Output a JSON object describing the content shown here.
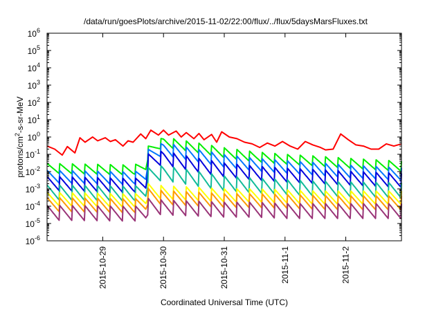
{
  "chart_data": {
    "type": "line",
    "title": "/data/run/goesPlots/archive/2015-11-02/22:00/flux/../flux/5daysMarsFluxes.txt",
    "xlabel": "Coordinated Universal Time (UTC)",
    "ylabel": "protons/cm²-s-sr-MeV",
    "ylabel_parts": {
      "base": "protons/cm",
      "sup": "2",
      "rest": "-s-sr-MeV"
    },
    "yscale": "log",
    "ylim": [
      1e-06,
      1000000.0
    ],
    "xlim": [
      "2015-10-28 02:00",
      "2015-11-02 22:00"
    ],
    "grid": false,
    "legend": "none",
    "x_ticks": [
      "2015-10-29",
      "2015-10-30",
      "2015-10-31",
      "2015-11-1",
      "2015-11-2"
    ],
    "y_ticks": [
      {
        "base": "10",
        "exp": "6"
      },
      {
        "base": "10",
        "exp": "5"
      },
      {
        "base": "10",
        "exp": "4"
      },
      {
        "base": "10",
        "exp": "3"
      },
      {
        "base": "10",
        "exp": "2"
      },
      {
        "base": "10",
        "exp": "1"
      },
      {
        "base": "10",
        "exp": "0"
      },
      {
        "base": "10",
        "exp": "-1"
      },
      {
        "base": "10",
        "exp": "-2"
      },
      {
        "base": "10",
        "exp": "-3"
      },
      {
        "base": "10",
        "exp": "-4"
      },
      {
        "base": "10",
        "exp": "-5"
      },
      {
        "base": "10",
        "exp": "-6"
      }
    ],
    "series": [
      {
        "color": "#ff0000",
        "x": [
          "2015-10-28 02:00",
          "2015-10-28 05:00",
          "2015-10-28 08:00",
          "2015-10-28 10:00",
          "2015-10-28 13:00",
          "2015-10-28 15:00",
          "2015-10-28 17:00",
          "2015-10-28 20:00",
          "2015-10-28 22:00",
          "2015-10-29 01:00",
          "2015-10-29 03:00",
          "2015-10-29 05:00",
          "2015-10-29 08:00",
          "2015-10-29 10:00",
          "2015-10-29 12:00",
          "2015-10-29 15:00",
          "2015-10-29 17:00",
          "2015-10-29 19:00",
          "2015-10-29 22:00",
          "2015-10-30 00:00",
          "2015-10-30 02:00",
          "2015-10-30 05:00",
          "2015-10-30 07:00",
          "2015-10-30 09:00",
          "2015-10-30 12:00",
          "2015-10-30 14:00",
          "2015-10-30 16:00",
          "2015-10-30 19:00",
          "2015-10-30 21:00",
          "2015-10-30 23:00",
          "2015-10-31 02:00",
          "2015-10-31 05:00",
          "2015-10-31 08:00",
          "2015-10-31 11:00",
          "2015-10-31 14:00",
          "2015-10-31 17:00",
          "2015-10-31 20:00",
          "2015-10-31 23:00",
          "2015-11-01 02:00",
          "2015-11-01 05:00",
          "2015-11-01 08:00",
          "2015-11-01 11:00",
          "2015-11-01 14:00",
          "2015-11-01 16:00",
          "2015-11-01 19:00",
          "2015-11-01 22:00",
          "2015-11-02 01:00",
          "2015-11-02 04:00",
          "2015-11-02 07:00",
          "2015-11-02 10:00",
          "2015-11-02 13:00",
          "2015-11-02 16:00",
          "2015-11-02 19:00",
          "2015-11-02 22:00"
        ],
        "y": [
          0.3,
          0.2,
          0.09,
          0.28,
          0.12,
          0.9,
          0.5,
          1.0,
          0.6,
          0.9,
          0.55,
          0.7,
          0.3,
          0.6,
          0.5,
          1.5,
          0.8,
          2.5,
          1.3,
          2.5,
          1.3,
          2.2,
          1.0,
          1.8,
          0.8,
          1.6,
          0.7,
          1.4,
          0.5,
          2.0,
          1.0,
          0.8,
          0.5,
          0.4,
          0.25,
          0.45,
          0.3,
          0.55,
          0.3,
          0.2,
          0.55,
          0.35,
          0.25,
          0.18,
          0.2,
          1.5,
          0.7,
          0.35,
          0.3,
          0.2,
          0.2,
          0.4,
          0.3,
          0.4
        ]
      },
      {
        "color": "#00ee00",
        "x": [
          "2015-10-28 02:00",
          "2015-10-29 12:00",
          "2015-10-29 17:00",
          "2015-10-29 18:00",
          "2015-10-30 00:00",
          "2015-10-30 12:00",
          "2015-10-31 00:00",
          "2015-10-31 12:00",
          "2015-11-01 00:00",
          "2015-11-01 12:00",
          "2015-11-02 00:00",
          "2015-11-02 22:00"
        ],
        "y": [
          0.015,
          0.012,
          0.02,
          0.15,
          0.5,
          0.25,
          0.12,
          0.07,
          0.05,
          0.04,
          0.03,
          0.02
        ],
        "osc_amp": 0.3
      },
      {
        "color": "#0077ff",
        "x": [
          "2015-10-28 02:00",
          "2015-10-29 12:00",
          "2015-10-29 17:00",
          "2015-10-29 18:00",
          "2015-10-30 00:00",
          "2015-10-30 12:00",
          "2015-10-31 00:00",
          "2015-10-31 12:00",
          "2015-11-01 00:00",
          "2015-11-01 12:00",
          "2015-11-02 00:00",
          "2015-11-02 22:00"
        ],
        "y": [
          0.005,
          0.004,
          0.006,
          0.08,
          0.2,
          0.09,
          0.04,
          0.025,
          0.018,
          0.014,
          0.01,
          0.007
        ],
        "osc_amp": 0.38
      },
      {
        "color": "#0000dd",
        "x": [
          "2015-10-28 02:00",
          "2015-10-29 12:00",
          "2015-10-29 17:00",
          "2015-10-29 18:00",
          "2015-10-30 00:00",
          "2015-10-30 12:00",
          "2015-10-31 00:00",
          "2015-10-31 12:00",
          "2015-11-01 00:00",
          "2015-11-01 12:00",
          "2015-11-02 00:00",
          "2015-11-02 22:00"
        ],
        "y": [
          0.002,
          0.0015,
          0.002,
          0.04,
          0.06,
          0.025,
          0.012,
          0.008,
          0.006,
          0.005,
          0.004,
          0.003
        ],
        "osc_amp": 0.42
      },
      {
        "color": "#11bb99",
        "x": [
          "2015-10-28 02:00",
          "2015-10-29 12:00",
          "2015-10-29 17:00",
          "2015-10-29 18:00",
          "2015-10-30 00:00",
          "2015-10-30 12:00",
          "2015-10-31 00:00",
          "2015-10-31 12:00",
          "2015-11-01 00:00",
          "2015-11-01 12:00",
          "2015-11-02 00:00",
          "2015-11-02 22:00"
        ],
        "y": [
          0.0006,
          0.0005,
          0.0007,
          0.006,
          0.008,
          0.004,
          0.002,
          0.0015,
          0.0012,
          0.001,
          0.0009,
          0.0008
        ],
        "osc_amp": 0.45
      },
      {
        "color": "#ffff00",
        "x": [
          "2015-10-28 02:00",
          "2015-10-29 12:00",
          "2015-10-29 17:00",
          "2015-10-29 18:00",
          "2015-10-30 00:00",
          "2015-10-30 12:00",
          "2015-10-31 00:00",
          "2015-10-31 12:00",
          "2015-11-01 00:00",
          "2015-11-01 12:00",
          "2015-11-02 00:00",
          "2015-11-02 22:00"
        ],
        "y": [
          0.00025,
          0.0002,
          0.00025,
          0.0008,
          0.0006,
          0.0005,
          0.0004,
          0.0004,
          0.00035,
          0.0003,
          0.0003,
          0.0003
        ],
        "osc_amp": 0.4
      },
      {
        "color": "#ff9900",
        "x": [
          "2015-10-28 02:00",
          "2015-10-29 12:00",
          "2015-10-29 17:00",
          "2015-10-29 18:00",
          "2015-10-30 00:00",
          "2015-10-30 12:00",
          "2015-10-31 00:00",
          "2015-10-31 12:00",
          "2015-11-01 00:00",
          "2015-11-01 12:00",
          "2015-11-02 00:00",
          "2015-11-02 22:00"
        ],
        "y": [
          0.00012,
          0.0001,
          0.00012,
          0.0004,
          0.0003,
          0.00025,
          0.0002,
          0.0002,
          0.00018,
          0.00016,
          0.00015,
          0.00015
        ],
        "osc_amp": 0.42
      },
      {
        "color": "#993377",
        "x": [
          "2015-10-28 02:00",
          "2015-10-29 12:00",
          "2015-10-29 17:00",
          "2015-10-29 18:00",
          "2015-10-30 00:00",
          "2015-10-30 12:00",
          "2015-10-31 00:00",
          "2015-10-31 12:00",
          "2015-11-01 00:00",
          "2015-11-01 12:00",
          "2015-11-02 00:00",
          "2015-11-02 22:00"
        ],
        "y": [
          4e-05,
          3.5e-05,
          4e-05,
          0.0001,
          8e-05,
          7e-05,
          6e-05,
          6e-05,
          5e-05,
          5e-05,
          5e-05,
          5e-05
        ],
        "osc_amp": 0.45
      }
    ]
  }
}
